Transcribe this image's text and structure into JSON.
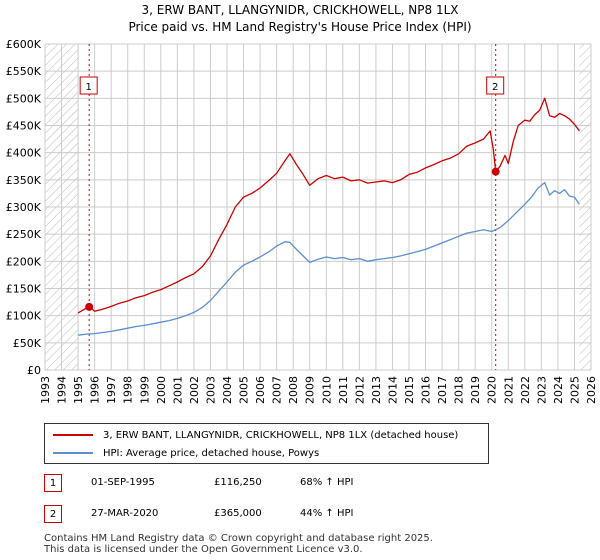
{
  "title_line1": "3, ERW BANT, LLANGYNIDR, CRICKHOWELL, NP8 1LX",
  "title_line2": "Price paid vs. HM Land Registry's House Price Index (HPI)",
  "colors": {
    "property": "#cc0000",
    "hpi": "#5b8fcf",
    "grid": "#cccccc",
    "hatch": "#bbbbbb",
    "marker_border": "#cc0000"
  },
  "legend": {
    "property_label": "3, ERW BANT, LLANGYNIDR, CRICKHOWELL, NP8 1LX (detached house)",
    "hpi_label": "HPI: Average price, detached house, Powys"
  },
  "sales": [
    {
      "num": "1",
      "date": "01-SEP-1995",
      "price": "£116,250",
      "hpi_change": "68% ↑ HPI"
    },
    {
      "num": "2",
      "date": "27-MAR-2020",
      "price": "£365,000",
      "hpi_change": "44% ↑ HPI"
    }
  ],
  "footer": {
    "line1": "Contains HM Land Registry data © Crown copyright and database right 2025.",
    "line2": "This data is licensed under the Open Government Licence v3.0."
  },
  "chart_data": {
    "type": "line",
    "title": "3, ERW BANT, LLANGYNIDR, CRICKHOWELL, NP8 1LX",
    "subtitle": "Price paid vs. HM Land Registry's House Price Index (HPI)",
    "xlabel": "",
    "ylabel": "",
    "xlim": [
      1993,
      2026
    ],
    "ylim": [
      0,
      600000
    ],
    "y_ticks": [
      0,
      50000,
      100000,
      150000,
      200000,
      250000,
      300000,
      350000,
      400000,
      450000,
      500000,
      550000,
      600000
    ],
    "y_tick_labels": [
      "£0",
      "£50K",
      "£100K",
      "£150K",
      "£200K",
      "£250K",
      "£300K",
      "£350K",
      "£400K",
      "£450K",
      "£500K",
      "£550K",
      "£600K"
    ],
    "x_ticks": [
      1993,
      1994,
      1995,
      1996,
      1997,
      1998,
      1999,
      2000,
      2001,
      2002,
      2003,
      2004,
      2005,
      2006,
      2007,
      2008,
      2009,
      2010,
      2011,
      2012,
      2013,
      2014,
      2015,
      2016,
      2017,
      2018,
      2019,
      2020,
      2021,
      2022,
      2023,
      2024,
      2025,
      2026
    ],
    "hatched_before": 1995.0,
    "hatched_after": 2025.3,
    "sale_markers": [
      {
        "label": "1",
        "x": 1995.67,
        "y": 116250
      },
      {
        "label": "2",
        "x": 2020.24,
        "y": 365000
      }
    ],
    "series": [
      {
        "name": "3, ERW BANT, LLANGYNIDR, CRICKHOWELL, NP8 1LX (detached house)",
        "color": "#cc0000",
        "x": [
          1995.0,
          1995.4,
          1995.67,
          1996.0,
          1996.5,
          1997.0,
          1997.5,
          1998.0,
          1998.5,
          1999.0,
          1999.5,
          2000.0,
          2000.5,
          2001.0,
          2001.5,
          2002.0,
          2002.5,
          2003.0,
          2003.5,
          2004.0,
          2004.5,
          2005.0,
          2005.5,
          2006.0,
          2006.5,
          2007.0,
          2007.5,
          2007.8,
          2008.2,
          2008.6,
          2009.0,
          2009.5,
          2010.0,
          2010.5,
          2011.0,
          2011.5,
          2012.0,
          2012.5,
          2013.0,
          2013.5,
          2014.0,
          2014.5,
          2015.0,
          2015.5,
          2016.0,
          2016.5,
          2017.0,
          2017.5,
          2018.0,
          2018.5,
          2019.0,
          2019.5,
          2019.9,
          2020.1,
          2020.24,
          2020.5,
          2020.8,
          2021.0,
          2021.3,
          2021.6,
          2022.0,
          2022.3,
          2022.6,
          2022.9,
          2023.2,
          2023.5,
          2023.8,
          2024.1,
          2024.4,
          2024.7,
          2025.0,
          2025.3
        ],
        "y": [
          105000,
          112000,
          116250,
          108000,
          112000,
          117000,
          123000,
          127000,
          133000,
          137000,
          143000,
          148000,
          155000,
          162000,
          170000,
          177000,
          190000,
          210000,
          240000,
          268000,
          300000,
          318000,
          325000,
          335000,
          348000,
          362000,
          385000,
          398000,
          378000,
          360000,
          340000,
          352000,
          358000,
          352000,
          355000,
          348000,
          350000,
          344000,
          346000,
          348000,
          345000,
          350000,
          360000,
          364000,
          372000,
          378000,
          385000,
          390000,
          398000,
          412000,
          418000,
          425000,
          440000,
          405000,
          365000,
          375000,
          395000,
          380000,
          420000,
          450000,
          460000,
          458000,
          470000,
          478000,
          500000,
          468000,
          465000,
          472000,
          468000,
          462000,
          452000,
          440000
        ]
      },
      {
        "name": "HPI: Average price, detached house, Powys",
        "color": "#5b8fcf",
        "x": [
          1995.0,
          1995.5,
          1996.0,
          1996.5,
          1997.0,
          1997.5,
          1998.0,
          1998.5,
          1999.0,
          1999.5,
          2000.0,
          2000.5,
          2001.0,
          2001.5,
          2002.0,
          2002.5,
          2003.0,
          2003.5,
          2004.0,
          2004.5,
          2005.0,
          2005.5,
          2006.0,
          2006.5,
          2007.0,
          2007.5,
          2007.8,
          2008.2,
          2008.6,
          2009.0,
          2009.5,
          2010.0,
          2010.5,
          2011.0,
          2011.5,
          2012.0,
          2012.5,
          2013.0,
          2013.5,
          2014.0,
          2014.5,
          2015.0,
          2015.5,
          2016.0,
          2016.5,
          2017.0,
          2017.5,
          2018.0,
          2018.5,
          2019.0,
          2019.5,
          2020.0,
          2020.5,
          2021.0,
          2021.5,
          2022.0,
          2022.4,
          2022.8,
          2023.2,
          2023.5,
          2023.8,
          2024.1,
          2024.4,
          2024.7,
          2025.0,
          2025.3
        ],
        "y": [
          64000,
          66000,
          67000,
          69000,
          71000,
          74000,
          77000,
          80000,
          82000,
          85000,
          88000,
          91000,
          95000,
          100000,
          106000,
          115000,
          128000,
          145000,
          162000,
          180000,
          193000,
          200000,
          208000,
          217000,
          228000,
          236000,
          235000,
          222000,
          210000,
          198000,
          204000,
          208000,
          205000,
          207000,
          203000,
          205000,
          200000,
          203000,
          205000,
          207000,
          210000,
          214000,
          218000,
          222000,
          228000,
          234000,
          240000,
          246000,
          252000,
          255000,
          258000,
          255000,
          262000,
          275000,
          290000,
          305000,
          318000,
          335000,
          345000,
          322000,
          330000,
          325000,
          332000,
          320000,
          318000,
          305000
        ]
      }
    ]
  }
}
